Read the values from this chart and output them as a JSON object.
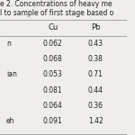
{
  "title_line1": "e 2. Concentrations of heavy me",
  "title_line2": "l to sample of first stage based o",
  "columns": [
    "Cu",
    "Pb"
  ],
  "row_labels": [
    "n",
    "",
    "ian",
    "",
    "",
    "eh"
  ],
  "rows": [
    [
      0.062,
      0.43
    ],
    [
      0.068,
      0.38
    ],
    [
      0.053,
      0.71
    ],
    [
      0.081,
      0.44
    ],
    [
      0.064,
      0.36
    ],
    [
      0.091,
      1.42
    ]
  ],
  "bg_color": "#f0eeea",
  "line_color": "#999999",
  "text_color": "#222222",
  "title_fontsize": 5.5,
  "body_fontsize": 5.5
}
